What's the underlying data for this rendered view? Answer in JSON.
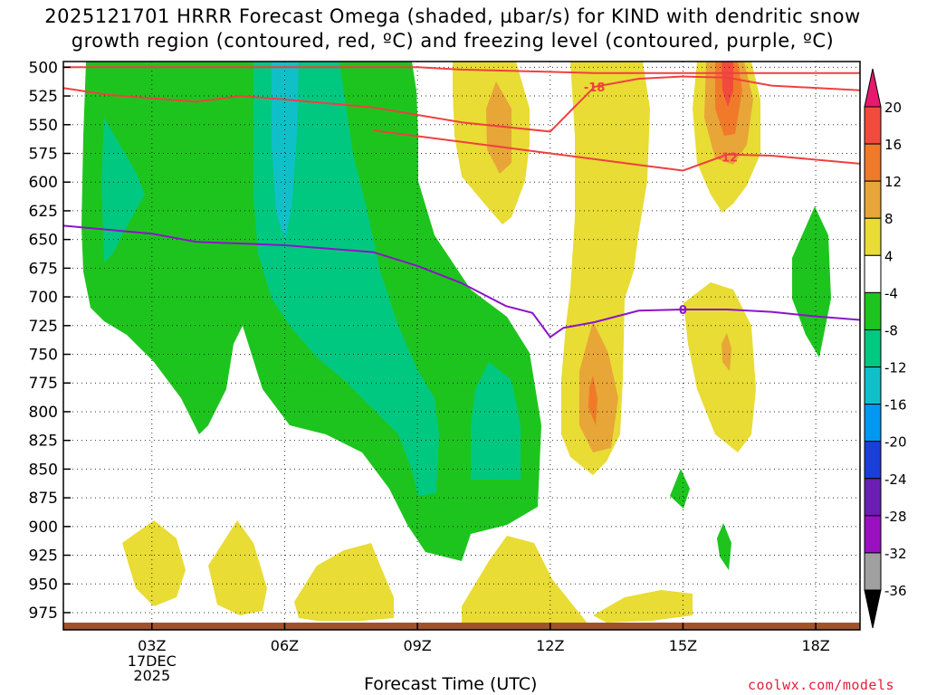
{
  "title_line1": "2025121701 HRRR Forecast Omega (shaded, µbar/s) for KIND with dendritic snow",
  "title_line2": "growth region (contoured, red, ºC) and freezing level (contoured, purple, ºC)",
  "credit": "coolwx.com/models",
  "chart_data": {
    "type": "time-height contour",
    "title": "2025121701 HRRR Forecast Omega (shaded, µbar/s) for KIND with dendritic snow growth region (contoured, red, ºC) and freezing level (contoured, purple, ºC)",
    "xlabel": "Forecast Time (UTC)",
    "ylabel": "",
    "x_range_hours": [
      1,
      19
    ],
    "y_range_hpa": [
      495,
      990
    ],
    "y_ticks": [
      "500",
      "525",
      "550",
      "575",
      "600",
      "625",
      "650",
      "675",
      "700",
      "725",
      "750",
      "775",
      "800",
      "825",
      "850",
      "875",
      "900",
      "925",
      "950",
      "975"
    ],
    "x_ticks": [
      {
        "hour": 3,
        "label": "03Z",
        "sub": [
          "17DEC",
          "2025"
        ]
      },
      {
        "hour": 6,
        "label": "06Z"
      },
      {
        "hour": 9,
        "label": "09Z"
      },
      {
        "hour": 12,
        "label": "12Z"
      },
      {
        "hour": 15,
        "label": "15Z"
      },
      {
        "hour": 18,
        "label": "18Z"
      }
    ],
    "grid": "dotted",
    "colorbar": {
      "levels": [
        "20",
        "16",
        "12",
        "8",
        "4",
        "-4",
        "-8",
        "-12",
        "-16",
        "-20",
        "-24",
        "-28",
        "-32",
        "-36"
      ],
      "colors": [
        "#e8186e",
        "#f24a3d",
        "#f07a2a",
        "#e7a637",
        "#e8dc35",
        "#ffffff",
        "#1ec41e",
        "#00c880",
        "#10c0c8",
        "#0098f0",
        "#1a3ed8",
        "#6a1eb4",
        "#9a10c0",
        "#a0a0a0",
        "#000000"
      ]
    },
    "contour_labels": [
      {
        "text": "-18",
        "hour": 13,
        "hpa": 517
      },
      {
        "text": "-12",
        "hour": 16,
        "hpa": 578
      },
      {
        "text": "0",
        "hour": 15,
        "hpa": 711
      }
    ],
    "series": [
      {
        "name": "-18 C isotherm",
        "color": "#f04040",
        "points": [
          [
            1,
            518
          ],
          [
            2,
            524
          ],
          [
            4,
            530
          ],
          [
            5,
            525
          ],
          [
            6,
            528
          ],
          [
            8,
            535
          ],
          [
            10,
            548
          ],
          [
            12,
            556
          ],
          [
            13,
            517
          ],
          [
            14,
            510
          ],
          [
            15,
            508
          ],
          [
            16,
            509
          ],
          [
            17,
            516
          ],
          [
            19,
            520
          ]
        ]
      },
      {
        "name": "-12 C isotherm",
        "color": "#f04040",
        "points": [
          [
            1,
            500
          ],
          [
            9,
            500
          ],
          [
            10,
            502
          ],
          [
            13,
            505
          ],
          [
            15,
            505
          ],
          [
            16,
            505
          ],
          [
            17,
            505
          ],
          [
            19,
            505
          ]
        ]
      },
      {
        "name": "-12 C isotherm lower",
        "color": "#f04040",
        "points": [
          [
            8,
            555
          ],
          [
            10,
            565
          ],
          [
            12,
            575
          ],
          [
            14,
            585
          ],
          [
            15,
            590
          ],
          [
            16,
            576
          ],
          [
            17,
            577
          ],
          [
            19,
            584
          ]
        ]
      },
      {
        "name": "0 C isotherm (freezing level)",
        "color": "#8c14c8",
        "points": [
          [
            1,
            638
          ],
          [
            3,
            645
          ],
          [
            4,
            652
          ],
          [
            6,
            655
          ],
          [
            8,
            661
          ],
          [
            9,
            673
          ],
          [
            10,
            688
          ],
          [
            11,
            708
          ],
          [
            11.6,
            714
          ],
          [
            12,
            735
          ],
          [
            12.3,
            727
          ],
          [
            13,
            722
          ],
          [
            14,
            712
          ],
          [
            15,
            711
          ],
          [
            16,
            711
          ],
          [
            17,
            713
          ],
          [
            18,
            717
          ],
          [
            19,
            720
          ]
        ]
      }
    ]
  }
}
